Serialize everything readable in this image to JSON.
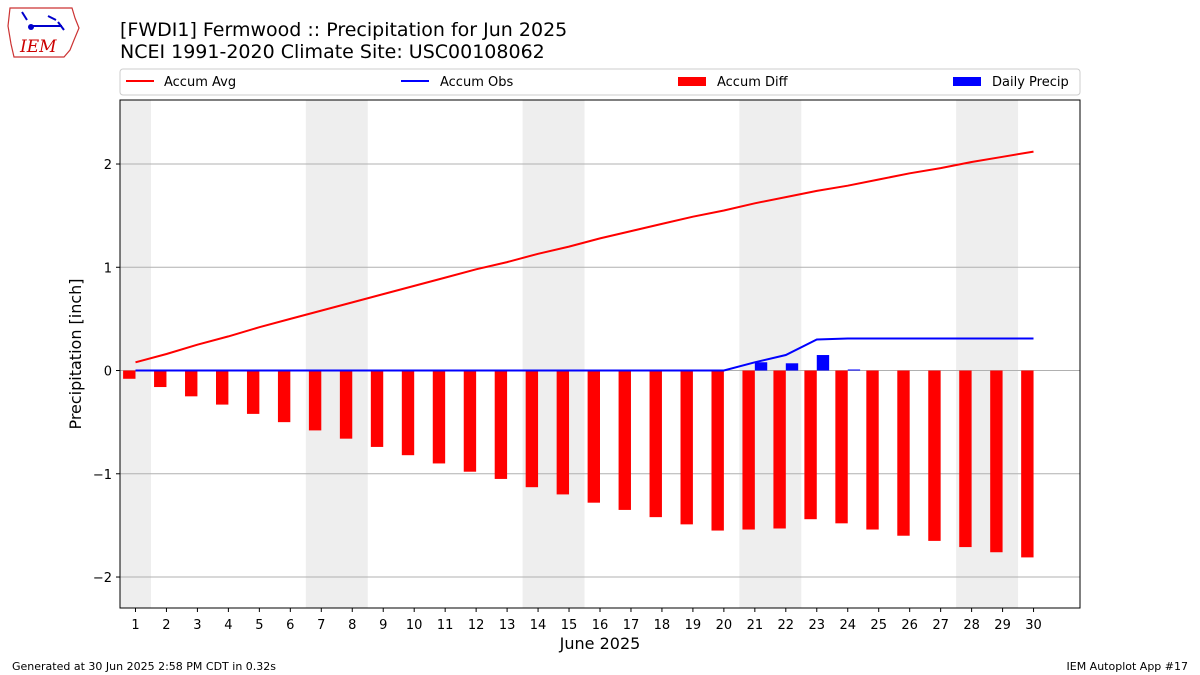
{
  "header": {
    "title_line1": "[FWDI1] Fermwood :: Precipitation for Jun 2025",
    "title_line2": "NCEI 1991-2020 Climate Site: USC00108062"
  },
  "logo": {
    "text": "IEM",
    "icon": "iem-iowa-logo"
  },
  "footer": {
    "generated": "Generated at 30 Jun 2025 2:58 PM CDT in 0.32s",
    "app": "IEM Autoplot App #17"
  },
  "colors": {
    "avg": "#ff0000",
    "obs": "#0000ff",
    "diff": "#ff0000",
    "daily": "#0000ff",
    "weekend": "#eeeeee",
    "grid": "#b0b0b0"
  },
  "chart_data": {
    "type": "bar",
    "xlabel": "June 2025",
    "ylabel": "Precipitation [inch]",
    "xlim": [
      0.5,
      31.5
    ],
    "ylim": [
      -2.3,
      2.62
    ],
    "yticks": [
      -2,
      -1,
      0,
      1,
      2
    ],
    "ytick_labels": [
      "−2",
      "−1",
      "0",
      "1",
      "2"
    ],
    "grid": true,
    "legend": {
      "position": "top",
      "entries": [
        "Accum Avg",
        "Accum Obs",
        "Accum Diff",
        "Daily Precip"
      ]
    },
    "shaded_day_ranges": [
      [
        0.5,
        1.5
      ],
      [
        6.5,
        8.5
      ],
      [
        13.5,
        15.5
      ],
      [
        20.5,
        22.5
      ],
      [
        27.5,
        29.5
      ]
    ],
    "days": [
      1,
      2,
      3,
      4,
      5,
      6,
      7,
      8,
      9,
      10,
      11,
      12,
      13,
      14,
      15,
      16,
      17,
      18,
      19,
      20,
      21,
      22,
      23,
      24,
      25,
      26,
      27,
      28,
      29,
      30
    ],
    "series": [
      {
        "name": "Accum Avg",
        "kind": "line",
        "values": [
          0.08,
          0.16,
          0.25,
          0.33,
          0.42,
          0.5,
          0.58,
          0.66,
          0.74,
          0.82,
          0.9,
          0.98,
          1.05,
          1.13,
          1.2,
          1.28,
          1.35,
          1.42,
          1.49,
          1.55,
          1.62,
          1.68,
          1.74,
          1.79,
          1.85,
          1.91,
          1.96,
          2.02,
          2.07,
          2.12
        ]
      },
      {
        "name": "Accum Obs",
        "kind": "line",
        "values": [
          0,
          0,
          0,
          0,
          0,
          0,
          0,
          0,
          0,
          0,
          0,
          0,
          0,
          0,
          0,
          0,
          0,
          0,
          0,
          0,
          0.08,
          0.15,
          0.3,
          0.31,
          0.31,
          0.31,
          0.31,
          0.31,
          0.31,
          0.31
        ]
      },
      {
        "name": "Accum Diff",
        "kind": "bar",
        "values": [
          -0.08,
          -0.16,
          -0.25,
          -0.33,
          -0.42,
          -0.5,
          -0.58,
          -0.66,
          -0.74,
          -0.82,
          -0.9,
          -0.98,
          -1.05,
          -1.13,
          -1.2,
          -1.28,
          -1.35,
          -1.42,
          -1.49,
          -1.55,
          -1.54,
          -1.53,
          -1.44,
          -1.48,
          -1.54,
          -1.6,
          -1.65,
          -1.71,
          -1.76,
          -1.81
        ]
      },
      {
        "name": "Daily Precip",
        "kind": "bar",
        "values": [
          0,
          0,
          0,
          0,
          0,
          0,
          0,
          0,
          0,
          0,
          0,
          0,
          0,
          0,
          0,
          0,
          0,
          0,
          0,
          0,
          0.08,
          0.07,
          0.15,
          0.01,
          0,
          0,
          0,
          0,
          0,
          0
        ]
      }
    ]
  }
}
